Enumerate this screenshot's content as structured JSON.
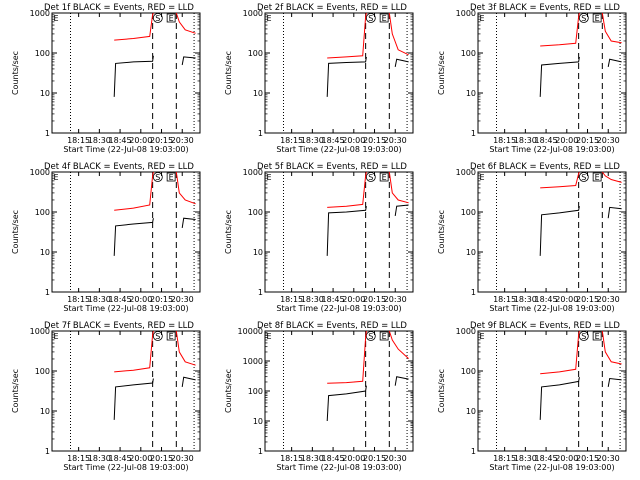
{
  "colors": {
    "events": "#000000",
    "lld": "#ff0000",
    "background": "#ffffff",
    "axis": "#000000"
  },
  "x_tick_labels": [
    "18:15",
    "18:30",
    "18:45",
    "20:00",
    "20:15",
    "20:30"
  ],
  "x_label": "Start Time (22-Jul-08 19:03:00)",
  "y_label": "Counts/sec",
  "marker_labels": [
    "S",
    "E"
  ],
  "chart_data": [
    {
      "type": "line",
      "title": "Det 1f BLACK = Events, RED = LLD",
      "yscale": "log",
      "ylim": [
        1,
        1000
      ],
      "y_tick_labels": [
        "1",
        "10",
        "100",
        "1000"
      ],
      "series": [
        {
          "name": "Events",
          "color": "#000000",
          "segments": [
            [
              [
                0.42,
                8
              ],
              [
                0.43,
                55
              ],
              [
                0.55,
                60
              ],
              [
                0.68,
                62
              ],
              [
                0.685,
                85
              ]
            ],
            [
              [
                0.88,
                50
              ],
              [
                0.89,
                80
              ],
              [
                0.97,
                75
              ]
            ]
          ]
        },
        {
          "name": "LLD",
          "color": "#ff0000",
          "segments": [
            [
              [
                0.42,
                210
              ],
              [
                0.55,
                230
              ],
              [
                0.66,
                260
              ],
              [
                0.68,
                900
              ],
              [
                0.685,
                1000
              ]
            ],
            [
              [
                0.84,
                1000
              ],
              [
                0.86,
                600
              ],
              [
                0.9,
                380
              ],
              [
                0.97,
                310
              ]
            ]
          ]
        }
      ]
    },
    {
      "type": "line",
      "title": "Det 2f BLACK = Events, RED = LLD",
      "yscale": "log",
      "ylim": [
        1,
        1000
      ],
      "y_tick_labels": [
        "1",
        "10",
        "100",
        "1000"
      ],
      "series": [
        {
          "name": "Events",
          "color": "#000000",
          "segments": [
            [
              [
                0.42,
                8
              ],
              [
                0.43,
                55
              ],
              [
                0.55,
                58
              ],
              [
                0.68,
                60
              ],
              [
                0.685,
                80
              ]
            ],
            [
              [
                0.88,
                45
              ],
              [
                0.89,
                70
              ],
              [
                0.97,
                60
              ]
            ]
          ]
        },
        {
          "name": "LLD",
          "color": "#ff0000",
          "segments": [
            [
              [
                0.42,
                75
              ],
              [
                0.55,
                80
              ],
              [
                0.66,
                85
              ],
              [
                0.68,
                800
              ],
              [
                0.685,
                1000
              ]
            ],
            [
              [
                0.84,
                1000
              ],
              [
                0.86,
                300
              ],
              [
                0.9,
                120
              ],
              [
                0.97,
                90
              ]
            ]
          ]
        }
      ]
    },
    {
      "type": "line",
      "title": "Det 3f BLACK = Events, RED = LLD",
      "yscale": "log",
      "ylim": [
        1,
        1000
      ],
      "y_tick_labels": [
        "1",
        "10",
        "100",
        "1000"
      ],
      "series": [
        {
          "name": "Events",
          "color": "#000000",
          "segments": [
            [
              [
                0.42,
                8
              ],
              [
                0.43,
                50
              ],
              [
                0.55,
                55
              ],
              [
                0.68,
                60
              ],
              [
                0.685,
                80
              ]
            ],
            [
              [
                0.88,
                45
              ],
              [
                0.89,
                70
              ],
              [
                0.97,
                60
              ]
            ]
          ]
        },
        {
          "name": "LLD",
          "color": "#ff0000",
          "segments": [
            [
              [
                0.42,
                150
              ],
              [
                0.55,
                160
              ],
              [
                0.66,
                175
              ],
              [
                0.68,
                800
              ],
              [
                0.685,
                1000
              ]
            ],
            [
              [
                0.84,
                1000
              ],
              [
                0.86,
                350
              ],
              [
                0.9,
                200
              ],
              [
                0.97,
                180
              ]
            ]
          ]
        }
      ]
    },
    {
      "type": "line",
      "title": "Det 4f BLACK = Events, RED = LLD",
      "yscale": "log",
      "ylim": [
        1,
        1000
      ],
      "y_tick_labels": [
        "1",
        "10",
        "100",
        "1000"
      ],
      "series": [
        {
          "name": "Events",
          "color": "#000000",
          "segments": [
            [
              [
                0.42,
                8
              ],
              [
                0.43,
                45
              ],
              [
                0.55,
                50
              ],
              [
                0.68,
                55
              ],
              [
                0.685,
                70
              ]
            ],
            [
              [
                0.88,
                40
              ],
              [
                0.89,
                70
              ],
              [
                0.97,
                65
              ]
            ]
          ]
        },
        {
          "name": "LLD",
          "color": "#ff0000",
          "segments": [
            [
              [
                0.42,
                110
              ],
              [
                0.55,
                125
              ],
              [
                0.66,
                150
              ],
              [
                0.68,
                800
              ],
              [
                0.685,
                1000
              ]
            ],
            [
              [
                0.84,
                1000
              ],
              [
                0.86,
                300
              ],
              [
                0.9,
                200
              ],
              [
                0.97,
                160
              ]
            ]
          ]
        }
      ]
    },
    {
      "type": "line",
      "title": "Det 5f BLACK = Events, RED = LLD",
      "yscale": "log",
      "ylim": [
        1,
        1000
      ],
      "y_tick_labels": [
        "1",
        "10",
        "100",
        "1000"
      ],
      "series": [
        {
          "name": "Events",
          "color": "#000000",
          "segments": [
            [
              [
                0.42,
                8
              ],
              [
                0.43,
                95
              ],
              [
                0.55,
                100
              ],
              [
                0.68,
                110
              ],
              [
                0.685,
                140
              ]
            ],
            [
              [
                0.88,
                80
              ],
              [
                0.89,
                140
              ],
              [
                0.97,
                150
              ]
            ]
          ]
        },
        {
          "name": "LLD",
          "color": "#ff0000",
          "segments": [
            [
              [
                0.42,
                130
              ],
              [
                0.55,
                140
              ],
              [
                0.66,
                155
              ],
              [
                0.68,
                800
              ],
              [
                0.685,
                1000
              ]
            ],
            [
              [
                0.84,
                1000
              ],
              [
                0.86,
                300
              ],
              [
                0.9,
                200
              ],
              [
                0.97,
                170
              ]
            ]
          ]
        }
      ]
    },
    {
      "type": "line",
      "title": "Det 6f BLACK = Events, RED = LLD",
      "yscale": "log",
      "ylim": [
        1,
        1000
      ],
      "y_tick_labels": [
        "1",
        "10",
        "100",
        "1000"
      ],
      "series": [
        {
          "name": "Events",
          "color": "#000000",
          "segments": [
            [
              [
                0.42,
                8
              ],
              [
                0.43,
                85
              ],
              [
                0.55,
                95
              ],
              [
                0.68,
                110
              ],
              [
                0.685,
                140
              ]
            ],
            [
              [
                0.88,
                70
              ],
              [
                0.89,
                130
              ],
              [
                0.97,
                120
              ]
            ]
          ]
        },
        {
          "name": "LLD",
          "color": "#ff0000",
          "segments": [
            [
              [
                0.42,
                400
              ],
              [
                0.55,
                430
              ],
              [
                0.66,
                460
              ],
              [
                0.68,
                900
              ],
              [
                0.685,
                1000
              ]
            ],
            [
              [
                0.84,
                1000
              ],
              [
                0.86,
                800
              ],
              [
                0.9,
                650
              ],
              [
                0.97,
                550
              ]
            ]
          ]
        }
      ]
    },
    {
      "type": "line",
      "title": "Det 7f BLACK = Events, RED = LLD",
      "yscale": "log",
      "ylim": [
        1,
        1000
      ],
      "y_tick_labels": [
        "1",
        "10",
        "100",
        "1000"
      ],
      "series": [
        {
          "name": "Events",
          "color": "#000000",
          "segments": [
            [
              [
                0.42,
                6
              ],
              [
                0.43,
                40
              ],
              [
                0.55,
                45
              ],
              [
                0.68,
                50
              ],
              [
                0.685,
                65
              ]
            ],
            [
              [
                0.88,
                40
              ],
              [
                0.89,
                70
              ],
              [
                0.97,
                60
              ]
            ]
          ]
        },
        {
          "name": "LLD",
          "color": "#ff0000",
          "segments": [
            [
              [
                0.42,
                95
              ],
              [
                0.55,
                105
              ],
              [
                0.66,
                120
              ],
              [
                0.68,
                800
              ],
              [
                0.685,
                1000
              ]
            ],
            [
              [
                0.84,
                1000
              ],
              [
                0.86,
                300
              ],
              [
                0.9,
                170
              ],
              [
                0.97,
                140
              ]
            ]
          ]
        }
      ]
    },
    {
      "type": "line",
      "title": "Det 8f BLACK = Events, RED = LLD",
      "yscale": "log",
      "ylim": [
        1,
        10000
      ],
      "y_tick_labels": [
        "1",
        "10",
        "100",
        "1000",
        "10000"
      ],
      "series": [
        {
          "name": "Events",
          "color": "#000000",
          "segments": [
            [
              [
                0.42,
                10
              ],
              [
                0.43,
                70
              ],
              [
                0.55,
                80
              ],
              [
                0.68,
                100
              ],
              [
                0.685,
                150
              ]
            ],
            [
              [
                0.88,
                150
              ],
              [
                0.89,
                300
              ],
              [
                0.97,
                250
              ]
            ]
          ]
        },
        {
          "name": "LLD",
          "color": "#ff0000",
          "segments": [
            [
              [
                0.42,
                180
              ],
              [
                0.55,
                190
              ],
              [
                0.66,
                210
              ],
              [
                0.68,
                6000
              ],
              [
                0.685,
                10000
              ]
            ],
            [
              [
                0.84,
                10000
              ],
              [
                0.86,
                5000
              ],
              [
                0.9,
                2500
              ],
              [
                0.97,
                1200
              ]
            ]
          ]
        }
      ]
    },
    {
      "type": "line",
      "title": "Det 9f BLACK = Events, RED = LLD",
      "yscale": "log",
      "ylim": [
        1,
        1000
      ],
      "y_tick_labels": [
        "1",
        "10",
        "100",
        "1000"
      ],
      "series": [
        {
          "name": "Events",
          "color": "#000000",
          "segments": [
            [
              [
                0.42,
                6
              ],
              [
                0.43,
                40
              ],
              [
                0.55,
                45
              ],
              [
                0.68,
                55
              ],
              [
                0.685,
                70
              ]
            ],
            [
              [
                0.88,
                40
              ],
              [
                0.89,
                65
              ],
              [
                0.97,
                60
              ]
            ]
          ]
        },
        {
          "name": "LLD",
          "color": "#ff0000",
          "segments": [
            [
              [
                0.42,
                85
              ],
              [
                0.55,
                95
              ],
              [
                0.66,
                110
              ],
              [
                0.68,
                800
              ],
              [
                0.685,
                1000
              ]
            ],
            [
              [
                0.84,
                1000
              ],
              [
                0.86,
                300
              ],
              [
                0.9,
                170
              ],
              [
                0.97,
                150
              ]
            ]
          ]
        }
      ]
    }
  ]
}
